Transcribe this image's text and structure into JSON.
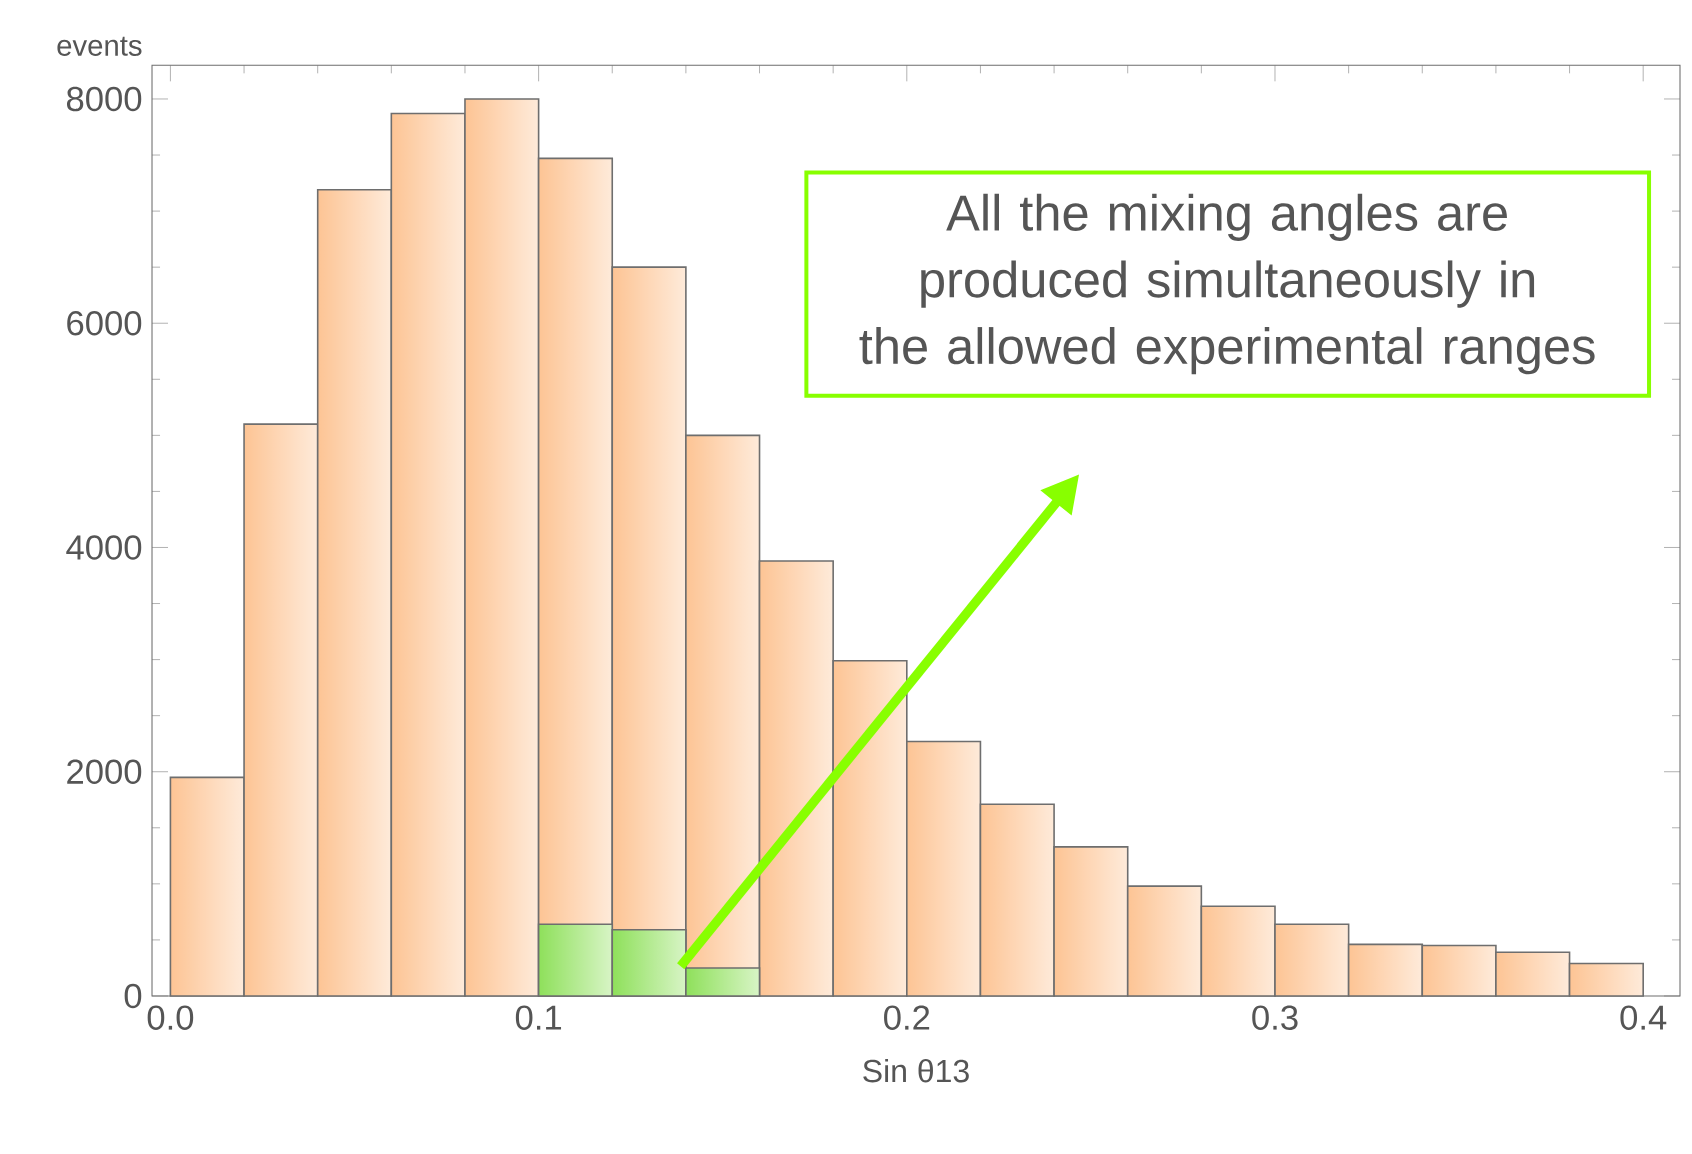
{
  "chart_data": {
    "type": "histogram",
    "xlabel": "Sin θ13",
    "ylabel": "events",
    "bins": [
      0,
      0.02,
      0.04,
      0.06,
      0.08,
      0.1,
      0.12,
      0.14,
      0.16,
      0.18,
      0.2,
      0.22,
      0.24,
      0.26,
      0.28,
      0.3,
      0.32,
      0.34,
      0.36,
      0.38,
      0.4
    ],
    "series": [
      {
        "color": "#fdc494",
        "values": [
          1950,
          5100,
          7190,
          7870,
          8000,
          7470,
          6500,
          5000,
          3880,
          2990,
          2270,
          1710,
          1330,
          980,
          800,
          640,
          460,
          450,
          390,
          290
        ]
      },
      {
        "color": "#8ee05a",
        "values": [
          null,
          null,
          null,
          null,
          null,
          640,
          590,
          250,
          null,
          null,
          null,
          null,
          null,
          null,
          null,
          null,
          null,
          null,
          null,
          null
        ]
      }
    ],
    "xlim": [
      -0.005,
      0.41
    ],
    "ylim": [
      0,
      8300
    ],
    "xticks": [
      {
        "value": 0,
        "label": "0.0"
      },
      0.1,
      0.2,
      0.3,
      0.4
    ],
    "yticks": [
      0,
      2000,
      4000,
      6000,
      8000
    ],
    "annotations": [
      "All the mixing angles are produced simultaneously in the allowed experimental ranges"
    ]
  }
}
